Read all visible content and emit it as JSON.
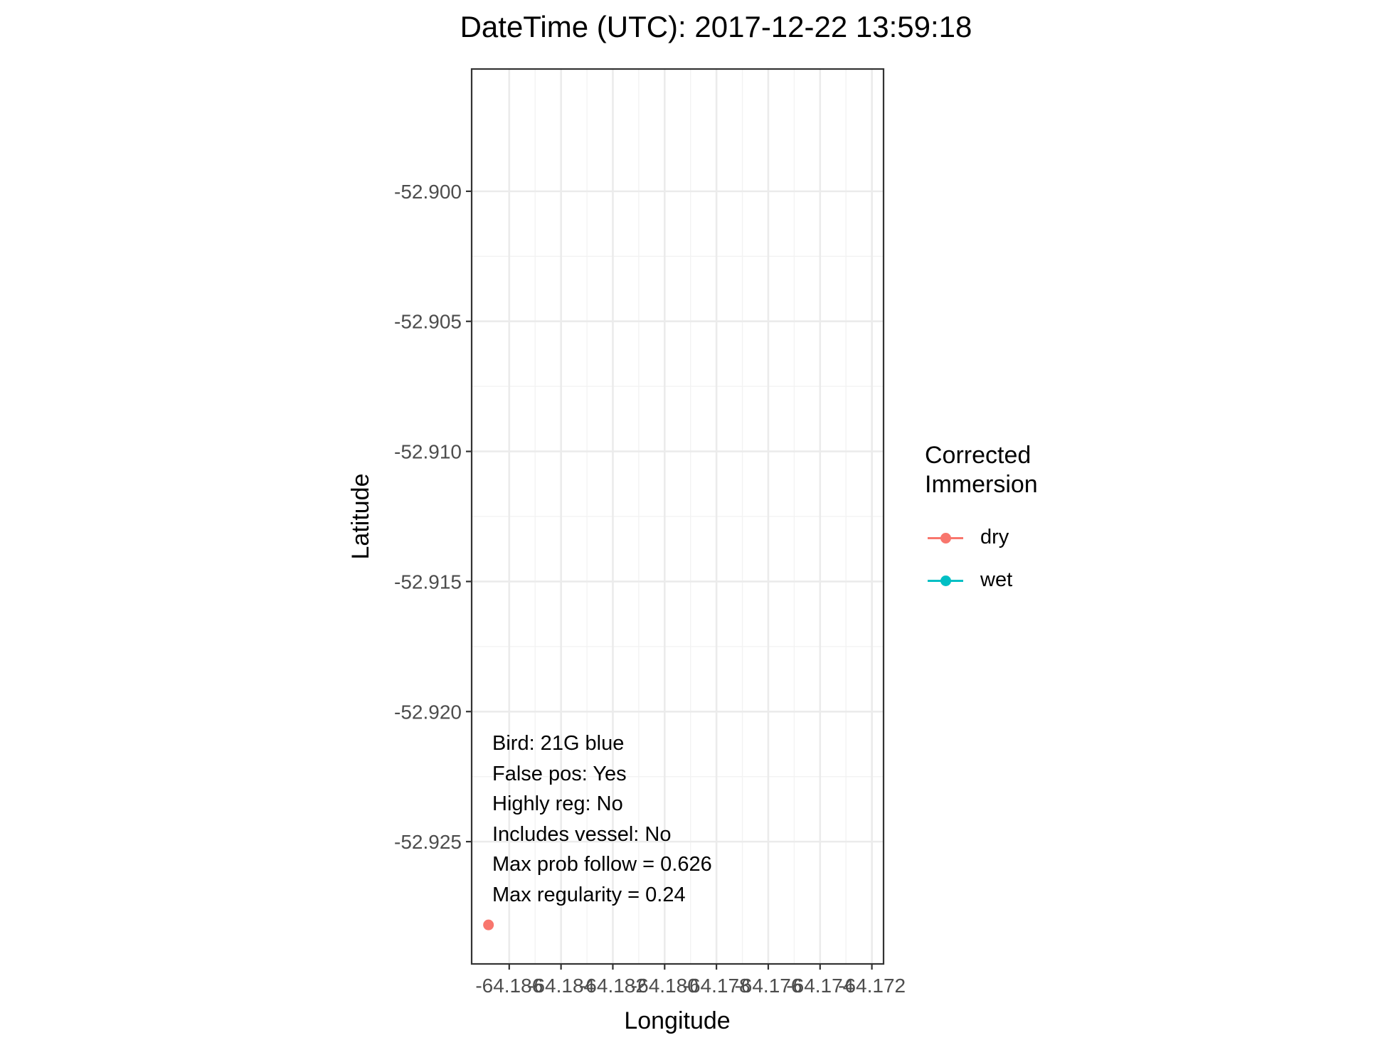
{
  "title": "DateTime (UTC): 2017-12-22 13:59:18",
  "chart_data": {
    "type": "scatter",
    "title": "DateTime (UTC): 2017-12-22 13:59:18",
    "xlabel": "Longitude",
    "ylabel": "Latitude",
    "xlim": [
      -64.18745,
      -64.17155
    ],
    "ylim": [
      -52.9297,
      -52.8953
    ],
    "x_ticks": [
      -64.186,
      -64.184,
      -64.182,
      -64.18,
      -64.178,
      -64.176,
      -64.174,
      -64.172
    ],
    "x_tick_labels": [
      "-64.186",
      "-64.184",
      "-64.182",
      "-64.180",
      "-64.178",
      "-64.176",
      "-64.174",
      "-64.172"
    ],
    "y_ticks": [
      -52.9,
      -52.905,
      -52.91,
      -52.915,
      -52.92,
      -52.925
    ],
    "y_tick_labels": [
      "-52.900",
      "-52.905",
      "-52.910",
      "-52.915",
      "-52.920",
      "-52.925"
    ],
    "grid": true,
    "legend": {
      "title_lines": [
        "Corrected",
        "Immersion"
      ],
      "placement": "right",
      "entries": [
        {
          "label": "dry",
          "color": "#f8766d"
        },
        {
          "label": "wet",
          "color": "#00bfc4"
        }
      ]
    },
    "points": [
      {
        "x": -64.1868,
        "y": -52.9282,
        "group": "dry"
      }
    ],
    "annotations": [
      "Bird: 21G blue",
      "False pos: Yes",
      "Highly reg: No",
      "Includes vessel: No",
      "Max prob follow = 0.626",
      "Max regularity = 0.24"
    ]
  }
}
